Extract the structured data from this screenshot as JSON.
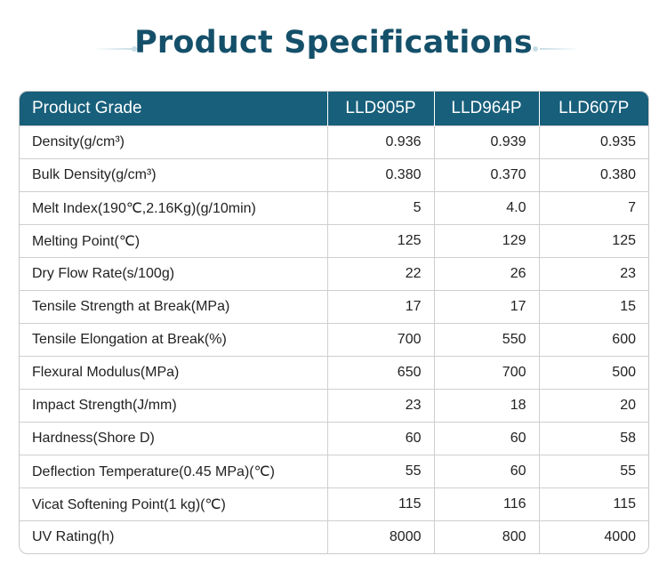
{
  "title": "Product Specifications",
  "colors": {
    "title": "#15506a",
    "header_bg": "#175f7b",
    "header_text": "#ffffff",
    "accent_line": "#c7dde5"
  },
  "table": {
    "headers": [
      "Product Grade",
      "LLD905P",
      "LLD964P",
      "LLD607P"
    ],
    "rows": [
      [
        "Density(g/cm³)",
        "0.936",
        "0.939",
        "0.935"
      ],
      [
        "Bulk Density(g/cm³)",
        "0.380",
        "0.370",
        "0.380"
      ],
      [
        "Melt Index(190℃,2.16Kg)(g/10min)",
        "5",
        "4.0",
        "7"
      ],
      [
        "Melting Point(℃)",
        "125",
        "129",
        "125"
      ],
      [
        "Dry Flow Rate(s/100g)",
        "22",
        "26",
        "23"
      ],
      [
        "Tensile Strength at Break(MPa)",
        "17",
        "17",
        "15"
      ],
      [
        "Tensile Elongation at Break(%)",
        "700",
        "550",
        "600"
      ],
      [
        "Flexural Modulus(MPa)",
        "650",
        "700",
        "500"
      ],
      [
        "Impact Strength(J/mm)",
        "23",
        "18",
        "20"
      ],
      [
        "Hardness(Shore D)",
        "60",
        "60",
        "58"
      ],
      [
        "Deflection Temperature(0.45 MPa)(℃)",
        "55",
        "60",
        "55"
      ],
      [
        "Vicat Softening Point(1 kg)(℃)",
        "115",
        "116",
        "115"
      ],
      [
        "UV Rating(h)",
        "8000",
        "800",
        "4000"
      ]
    ]
  }
}
